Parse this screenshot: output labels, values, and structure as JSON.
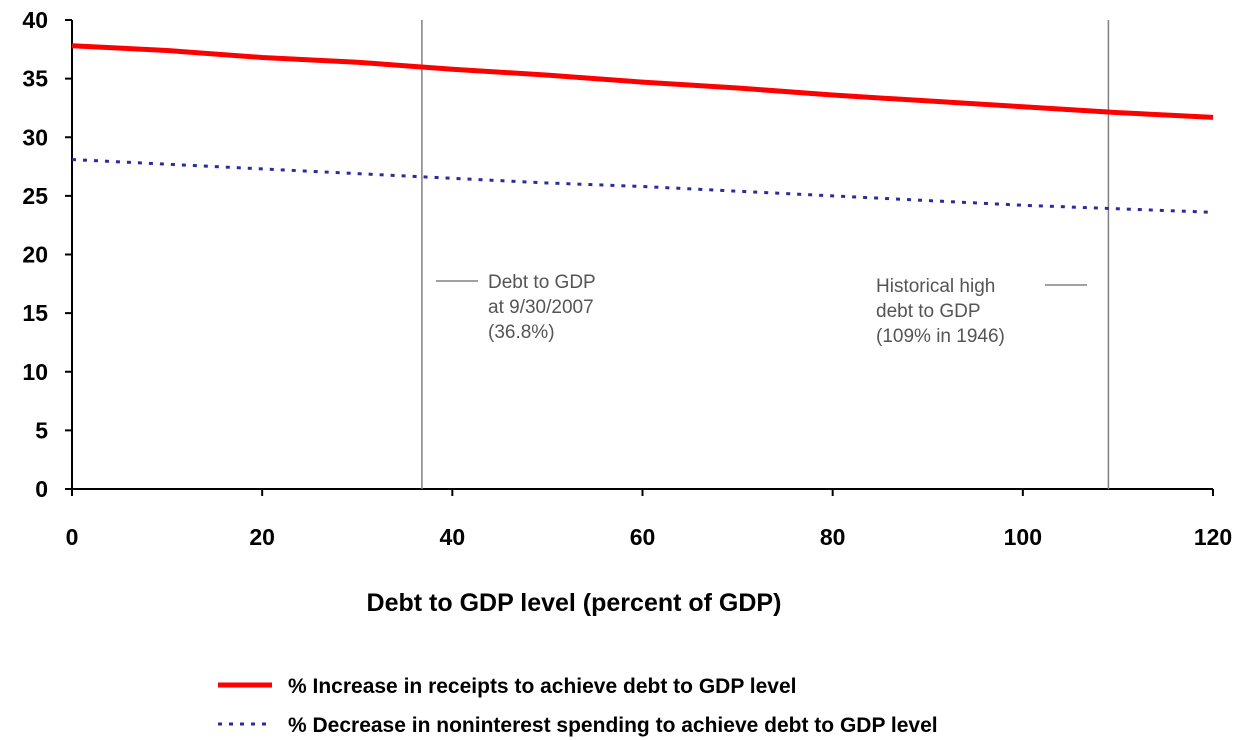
{
  "chart_data": {
    "type": "line",
    "xlabel": "Debt to GDP level (percent of GDP)",
    "ylabel": "",
    "xlim": [
      0,
      120
    ],
    "ylim": [
      0,
      40
    ],
    "x_ticks": [
      "0",
      "20",
      "40",
      "60",
      "80",
      "100",
      "120"
    ],
    "y_ticks": [
      "0",
      "5",
      "10",
      "15",
      "20",
      "25",
      "30",
      "35",
      "40"
    ],
    "grid": false,
    "legend_position": "bottom",
    "x": [
      0,
      10,
      20,
      30,
      40,
      50,
      60,
      70,
      80,
      90,
      100,
      110,
      120
    ],
    "series": [
      {
        "name": "% Increase in receipts to achieve debt to GDP level",
        "color": "#ff0000",
        "style": "solid",
        "values": [
          37.8,
          37.4,
          36.8,
          36.4,
          35.8,
          35.3,
          34.7,
          34.2,
          33.6,
          33.1,
          32.6,
          32.1,
          31.7
        ]
      },
      {
        "name": "% Decrease in noninterest spending to achieve debt to GDP level",
        "color": "#2b2ba0",
        "style": "dotted",
        "values": [
          28.1,
          27.7,
          27.3,
          26.9,
          26.5,
          26.1,
          25.8,
          25.4,
          25.0,
          24.6,
          24.2,
          23.9,
          23.6
        ]
      }
    ],
    "reference_lines": [
      {
        "x": 36.8,
        "label_lines": [
          "Debt to GDP",
          "at 9/30/2007",
          "(36.8%)"
        ]
      },
      {
        "x": 109,
        "label_lines": [
          "Historical high",
          "debt to GDP",
          "(109% in 1946)"
        ]
      }
    ]
  }
}
